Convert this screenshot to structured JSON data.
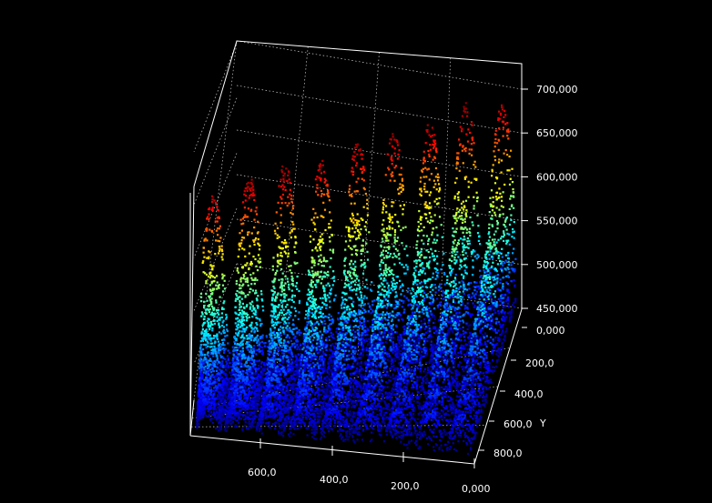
{
  "chart_data": {
    "type": "scatter",
    "subtype": "3d-point-cloud-surface",
    "title": "",
    "colormap": "jet",
    "background": "#000000",
    "box_line_color": "#ffffff",
    "grid": true,
    "z_axis": {
      "label": "",
      "ticks": [
        "700,000",
        "650,000",
        "600,000",
        "550,000",
        "500,000",
        "450,000"
      ],
      "values": [
        700,
        650,
        600,
        550,
        500,
        450
      ],
      "range": [
        430,
        720
      ]
    },
    "y_axis": {
      "label": "Y",
      "ticks": [
        "0,000",
        "200,0",
        "400,0",
        "600,0",
        "800,0"
      ],
      "values": [
        0,
        200,
        400,
        600,
        800
      ],
      "range": [
        0,
        900
      ]
    },
    "x_axis": {
      "label": "",
      "ticks": [
        "600,0",
        "400,0",
        "200,0",
        "0,000"
      ],
      "values": [
        600,
        400,
        200,
        0
      ],
      "range": [
        0,
        800
      ]
    },
    "surface": {
      "description_rows": 9,
      "description_cols": 9,
      "base_z": 455,
      "peak_rows": [
        {
          "row": 0,
          "peak_heights": [
            690,
            700,
            705,
            690,
            700,
            700,
            695,
            705,
            690
          ]
        },
        {
          "row": 1,
          "peak_heights": [
            610,
            615,
            620,
            610,
            625,
            615,
            620,
            610,
            615
          ]
        },
        {
          "row": 2,
          "peak_heights": [
            575,
            580,
            575,
            585,
            580,
            575,
            580,
            585,
            575
          ]
        },
        {
          "row": 3,
          "peak_heights": [
            555,
            560,
            555,
            560,
            555,
            560,
            555,
            560,
            555
          ]
        },
        {
          "row": 4,
          "peak_heights": [
            535,
            540,
            535,
            540,
            535,
            540,
            535,
            540,
            535
          ]
        },
        {
          "row": 5,
          "peak_heights": [
            518,
            522,
            518,
            522,
            518,
            522,
            518,
            522,
            518
          ]
        },
        {
          "row": 6,
          "peak_heights": [
            505,
            508,
            505,
            508,
            505,
            508,
            505,
            508,
            505
          ]
        },
        {
          "row": 7,
          "peak_heights": [
            495,
            497,
            495,
            497,
            495,
            497,
            495,
            497,
            495
          ]
        },
        {
          "row": 8,
          "peak_heights": [
            488,
            490,
            488,
            490,
            488,
            490,
            488,
            490,
            488
          ]
        }
      ]
    }
  }
}
